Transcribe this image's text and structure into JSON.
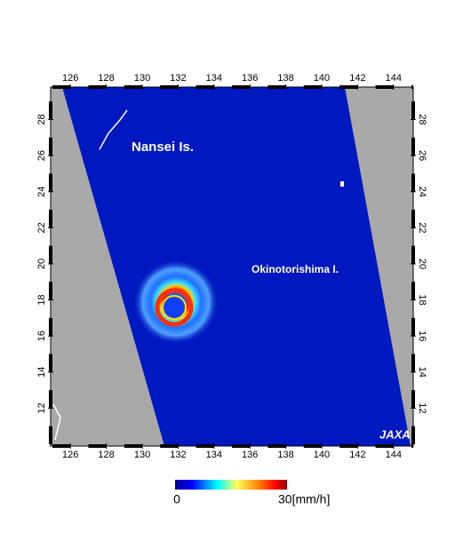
{
  "map": {
    "labels": {
      "islands_north": "Nansei Is.",
      "island_east": "Okinotorishima I."
    },
    "logo": "JAXA",
    "lon_range": [
      124.9,
      145.1
    ],
    "lat_range": [
      9.9,
      29.8
    ],
    "lon_ticks": [
      126,
      128,
      130,
      132,
      134,
      136,
      138,
      140,
      142,
      144
    ],
    "lat_ticks": [
      12,
      14,
      16,
      18,
      20,
      22,
      24,
      26,
      28
    ],
    "colorbar": {
      "min_label": "0",
      "max_label": "30[mm/h]"
    }
  }
}
